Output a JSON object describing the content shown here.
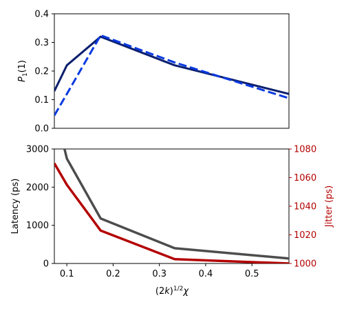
{
  "chart_data": [
    {
      "type": "line",
      "ylabel": "P_1(1)",
      "xlim": [
        0.073,
        0.58
      ],
      "ylim": [
        0,
        0.4
      ],
      "yticks": [
        "0.0",
        "0.1",
        "0.2",
        "0.3",
        "0.4"
      ],
      "series": [
        {
          "style": "solid",
          "color": "#0a1f6e",
          "x": [
            0.073,
            0.1,
            0.173,
            0.333,
            0.58
          ],
          "y": [
            0.13,
            0.22,
            0.32,
            0.22,
            0.12
          ]
        },
        {
          "style": "dashed",
          "color": "#0a3ae0",
          "x": [
            0.073,
            0.1,
            0.173,
            0.333,
            0.58
          ],
          "y": [
            0.045,
            0.12,
            0.325,
            0.23,
            0.105
          ]
        }
      ]
    },
    {
      "type": "line",
      "xlabel": "(2k)^1/2 χ",
      "ylabel": "Latency (ps)",
      "ylabel_right": "Jitter (ps)",
      "xlim": [
        0.073,
        0.58
      ],
      "ylim": [
        0,
        3000
      ],
      "ylim_right": [
        1000,
        1080
      ],
      "xticks": [
        "0.1",
        "0.2",
        "0.3",
        "0.4",
        "0.5"
      ],
      "xtick_values": [
        0.1,
        0.2,
        0.3,
        0.4,
        0.5
      ],
      "yticks": [
        "0",
        "1000",
        "2000",
        "3000"
      ],
      "yticks_right": [
        "1000",
        "1020",
        "1040",
        "1060",
        "1080"
      ],
      "series": [
        {
          "axis": "left",
          "color": "#4d4d4d",
          "x": [
            0.095,
            0.1,
            0.173,
            0.333,
            0.58
          ],
          "y": [
            3000,
            2750,
            1180,
            400,
            130
          ]
        },
        {
          "axis": "right",
          "color": "#b30000",
          "x": [
            0.073,
            0.1,
            0.173,
            0.333,
            0.58
          ],
          "y": [
            1070,
            1055,
            1023,
            1003,
            1000
          ]
        }
      ]
    }
  ]
}
